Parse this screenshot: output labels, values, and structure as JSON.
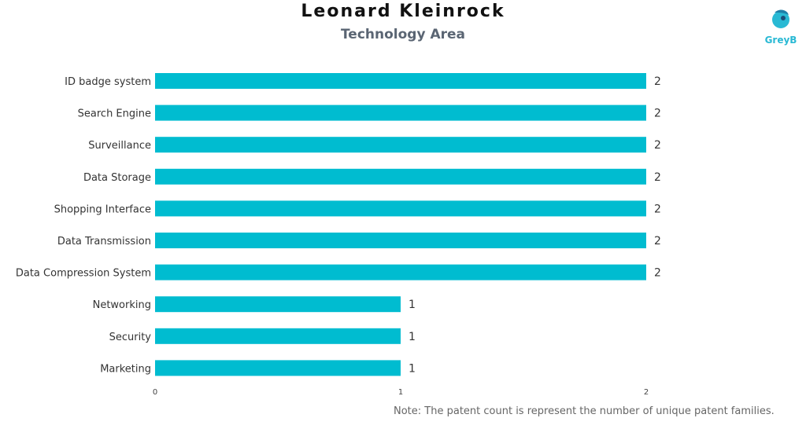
{
  "chart_data": {
    "type": "bar",
    "orientation": "horizontal",
    "title": "Leonard Kleinrock",
    "subtitle": "Technology Area",
    "categories": [
      "ID badge system",
      "Search Engine",
      "Surveillance",
      "Data Storage",
      "Shopping Interface",
      "Data Transmission",
      "Data Compression System",
      "Networking",
      "Security",
      "Marketing"
    ],
    "values": [
      2,
      2,
      2,
      2,
      2,
      2,
      2,
      1,
      1,
      1
    ],
    "xlim": [
      0,
      2
    ],
    "x_ticks": [
      0,
      1,
      2
    ],
    "bar_color": "#00bcd0",
    "grid": false,
    "legend": "none"
  },
  "logo": {
    "text": "GreyB",
    "color": "#29b9d4"
  },
  "note": "Note: The patent count is represent the number of unique patent families."
}
